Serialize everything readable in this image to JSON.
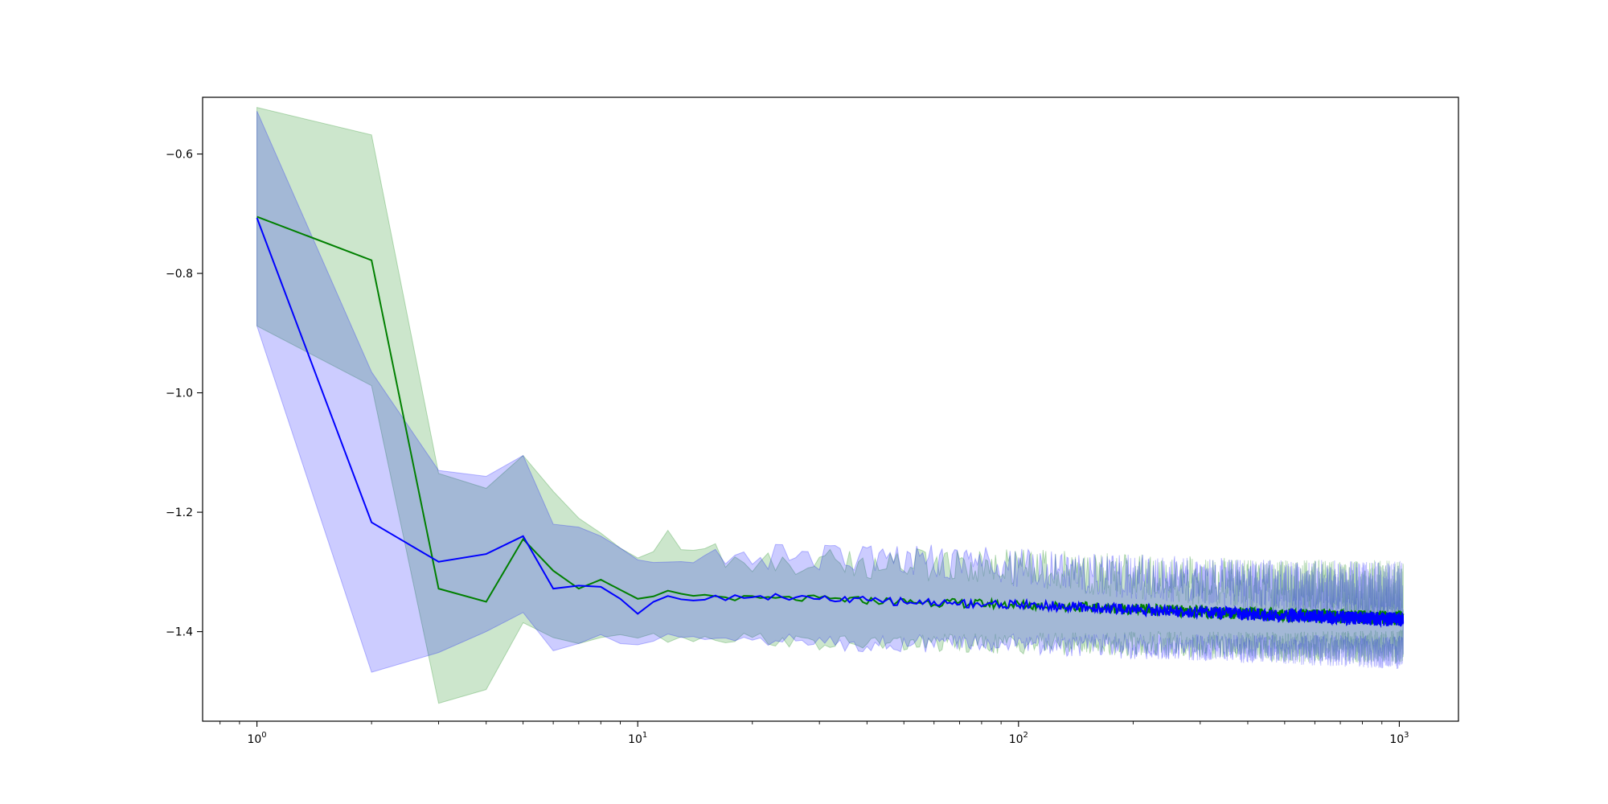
{
  "chart_data": {
    "type": "line",
    "title": "",
    "xlabel": "",
    "ylabel": "",
    "xscale": "log",
    "xlim": [
      0.72,
      1430
    ],
    "ylim": [
      -1.55,
      -0.505
    ],
    "grid": false,
    "x_ticks": [
      {
        "value": 1,
        "base": "10",
        "exp": "0"
      },
      {
        "value": 10,
        "base": "10",
        "exp": "1"
      },
      {
        "value": 100,
        "base": "10",
        "exp": "2"
      },
      {
        "value": 1000,
        "base": "10",
        "exp": "3"
      }
    ],
    "y_ticks": [
      {
        "value": -0.6,
        "label": "−0.6"
      },
      {
        "value": -0.8,
        "label": "−0.8"
      },
      {
        "value": -1.0,
        "label": "−1.0"
      },
      {
        "value": -1.2,
        "label": "−1.2"
      },
      {
        "value": -1.4,
        "label": "−1.4"
      }
    ],
    "colors": {
      "green_line": "#008000",
      "green_band": "#008000",
      "blue_line": "#0000ff",
      "blue_band": "#0000ff"
    },
    "series": [
      {
        "color": "green",
        "x": [
          1,
          2,
          3,
          4,
          5,
          6,
          7,
          8,
          9,
          10,
          12,
          15,
          20,
          30,
          50,
          100,
          200,
          500,
          1024
        ],
        "values": [
          -0.705,
          -0.778,
          -1.328,
          -1.35,
          -1.245,
          -1.298,
          -1.328,
          -1.313,
          -1.33,
          -1.348,
          -1.335,
          -1.34,
          -1.345,
          -1.345,
          -1.35,
          -1.355,
          -1.362,
          -1.372,
          -1.378
        ],
        "upper": [
          -0.522,
          -0.568,
          -1.135,
          -1.16,
          -1.105,
          -1.165,
          -1.21,
          -1.235,
          -1.26,
          -1.29,
          -1.25,
          -1.27,
          -1.28,
          -1.28,
          -1.28,
          -1.28,
          -1.29,
          -1.3,
          -1.3
        ],
        "lower": [
          -0.888,
          -0.988,
          -1.52,
          -1.497,
          -1.385,
          -1.41,
          -1.42,
          -1.41,
          -1.405,
          -1.405,
          -1.41,
          -1.41,
          -1.41,
          -1.42,
          -1.42,
          -1.42,
          -1.42,
          -1.425,
          -1.425
        ]
      },
      {
        "color": "blue",
        "x": [
          1,
          2,
          3,
          4,
          5,
          6,
          7,
          8,
          9,
          10,
          12,
          15,
          20,
          30,
          50,
          100,
          200,
          500,
          1024
        ],
        "values": [
          -0.707,
          -1.217,
          -1.283,
          -1.27,
          -1.24,
          -1.328,
          -1.323,
          -1.325,
          -1.345,
          -1.367,
          -1.34,
          -1.345,
          -1.34,
          -1.345,
          -1.35,
          -1.355,
          -1.363,
          -1.373,
          -1.38
        ],
        "upper": [
          -0.528,
          -0.965,
          -1.13,
          -1.14,
          -1.105,
          -1.22,
          -1.225,
          -1.24,
          -1.26,
          -1.29,
          -1.28,
          -1.28,
          -1.275,
          -1.27,
          -1.27,
          -1.28,
          -1.29,
          -1.3,
          -1.3
        ],
        "lower": [
          -0.888,
          -1.468,
          -1.435,
          -1.4,
          -1.368,
          -1.432,
          -1.42,
          -1.405,
          -1.42,
          -1.43,
          -1.41,
          -1.405,
          -1.41,
          -1.42,
          -1.42,
          -1.42,
          -1.425,
          -1.43,
          -1.435
        ]
      }
    ]
  }
}
